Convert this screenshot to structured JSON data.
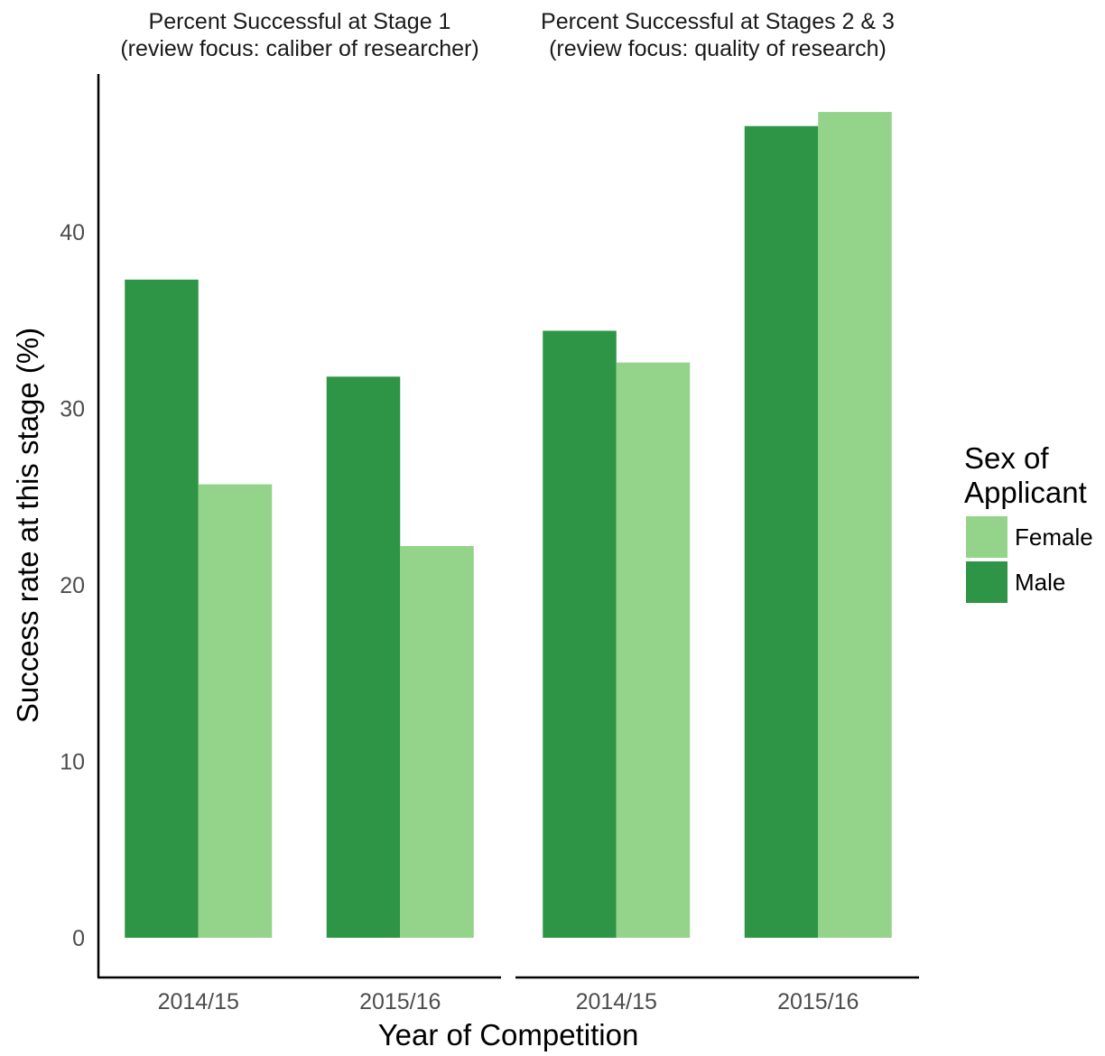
{
  "chart_data": {
    "type": "bar",
    "xlabel": "Year of Competition",
    "ylabel": "Success rate at this stage (%)",
    "ylim": [
      0,
      48
    ],
    "yticks": [
      0,
      10,
      20,
      30,
      40
    ],
    "grid": false,
    "legend": {
      "title_lines": [
        "Sex of",
        "Applicant"
      ],
      "placement": "right",
      "entries": [
        {
          "name": "Female",
          "color": "#94d38a"
        },
        {
          "name": "Male",
          "color": "#2e9446"
        }
      ]
    },
    "panels": [
      {
        "title_lines": [
          "Percent Successful at Stage 1",
          "(review focus: caliber of researcher)"
        ],
        "categories": [
          "2014/15",
          "2015/16"
        ],
        "series": [
          {
            "name": "Male",
            "color": "#2e9446",
            "values": [
              37.3,
              31.8
            ]
          },
          {
            "name": "Female",
            "color": "#94d38a",
            "values": [
              25.7,
              22.2
            ]
          }
        ]
      },
      {
        "title_lines": [
          "Percent Successful at Stages 2 & 3",
          "(review focus: quality of research)"
        ],
        "categories": [
          "2014/15",
          "2015/16"
        ],
        "series": [
          {
            "name": "Male",
            "color": "#2e9446",
            "values": [
              34.4,
              46.0
            ]
          },
          {
            "name": "Female",
            "color": "#94d38a",
            "values": [
              32.6,
              46.8
            ]
          }
        ]
      }
    ]
  }
}
